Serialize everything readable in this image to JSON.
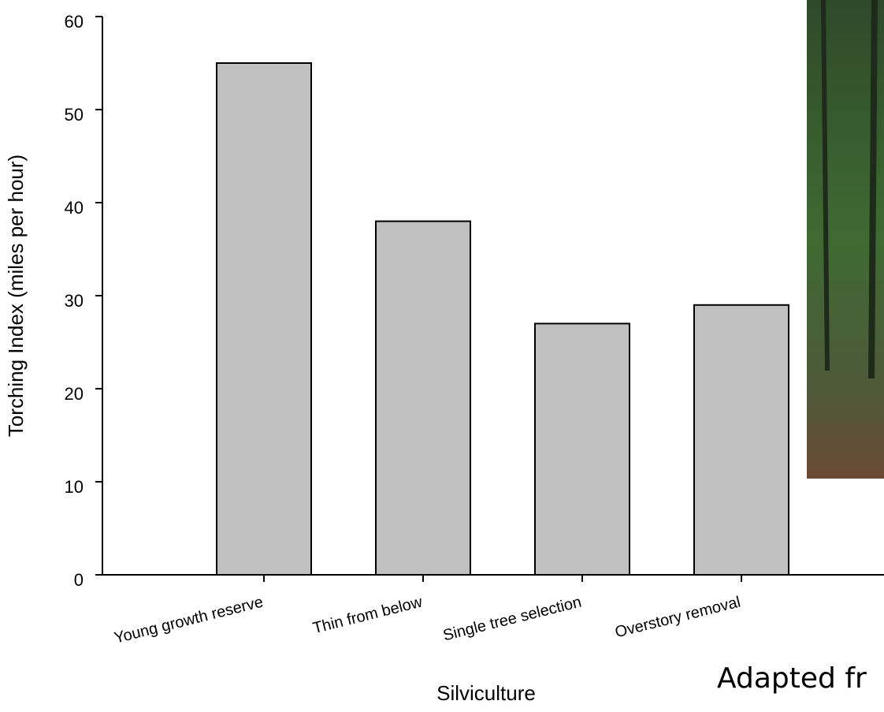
{
  "chart_data": {
    "type": "bar",
    "x_label": "Silviculture",
    "y_label": "Torching Index (miles per hour)",
    "annotation": "Adapted fr",
    "categories": [
      "Young growth reserve",
      "Thin from below",
      "Single tree selection",
      "Overstory removal"
    ],
    "values": [
      55,
      38,
      27,
      29
    ],
    "color": "#c0c0c0",
    "ylim": [
      0,
      60
    ],
    "yticks": [
      0,
      10,
      20,
      30,
      40,
      50,
      60
    ]
  }
}
